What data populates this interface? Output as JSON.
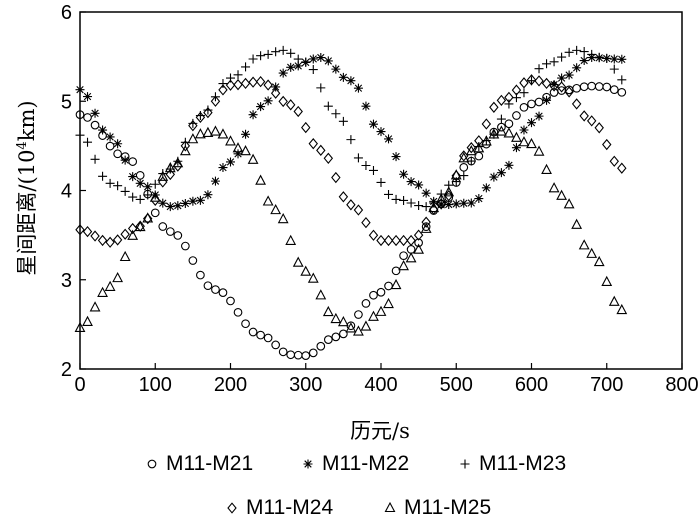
{
  "chart_data": {
    "type": "scatter",
    "title": "",
    "xlabel": "历元/s",
    "ylabel_main": "星间距离/(10",
    "ylabel_sup": "4",
    "ylabel_tail": "km)",
    "xlim": [
      0,
      800
    ],
    "ylim": [
      2,
      6
    ],
    "xticks": [
      0,
      100,
      200,
      300,
      400,
      500,
      600,
      700,
      800
    ],
    "yticks": [
      2,
      3,
      4,
      5,
      6
    ],
    "grid": false,
    "legend_position": "bottom",
    "series": [
      {
        "name": "M11-M21",
        "marker": "circle",
        "x": [
          0,
          60,
          120,
          180,
          240,
          280,
          300,
          340,
          400,
          440,
          480,
          520,
          560,
          600,
          640,
          680,
          700,
          720
        ],
        "y": [
          4.85,
          4.38,
          3.54,
          2.89,
          2.38,
          2.16,
          2.15,
          2.36,
          2.86,
          3.34,
          3.85,
          4.33,
          4.71,
          4.97,
          5.12,
          5.17,
          5.16,
          5.1
        ]
      },
      {
        "name": "M11-M22",
        "marker": "asterisk",
        "x": [
          0,
          40,
          80,
          120,
          160,
          200,
          240,
          280,
          320,
          360,
          400,
          440,
          480,
          520,
          560,
          600,
          640,
          680,
          720
        ],
        "y": [
          5.13,
          4.6,
          4.08,
          3.82,
          3.89,
          4.32,
          4.94,
          5.38,
          5.49,
          5.23,
          4.66,
          4.1,
          3.84,
          3.86,
          4.2,
          4.76,
          5.26,
          5.49,
          5.47
        ]
      },
      {
        "name": "M11-M23",
        "marker": "plus",
        "x": [
          0,
          40,
          80,
          120,
          160,
          200,
          240,
          270,
          300,
          340,
          380,
          420,
          460,
          500,
          540,
          580,
          620,
          660,
          700,
          720
        ],
        "y": [
          4.62,
          4.08,
          3.9,
          4.24,
          4.84,
          5.26,
          5.51,
          5.57,
          5.44,
          4.86,
          4.28,
          3.9,
          3.82,
          4.1,
          4.56,
          5.04,
          5.42,
          5.57,
          5.48,
          5.24
        ]
      },
      {
        "name": "M11-M24",
        "marker": "diamond",
        "x": [
          0,
          40,
          80,
          120,
          160,
          200,
          240,
          280,
          320,
          360,
          400,
          440,
          480,
          520,
          560,
          600,
          640,
          680,
          720
        ],
        "y": [
          3.56,
          3.42,
          3.6,
          4.18,
          4.82,
          5.18,
          5.22,
          4.96,
          4.45,
          3.84,
          3.44,
          3.44,
          3.85,
          4.48,
          5.01,
          5.24,
          5.16,
          4.78,
          4.25
        ]
      },
      {
        "name": "M11-M25",
        "marker": "triangle",
        "x": [
          0,
          40,
          80,
          120,
          160,
          180,
          220,
          260,
          300,
          340,
          370,
          400,
          440,
          480,
          520,
          560,
          600,
          640,
          680,
          720
        ],
        "y": [
          2.46,
          2.92,
          3.59,
          4.25,
          4.63,
          4.66,
          4.44,
          3.78,
          3.09,
          2.56,
          2.42,
          2.64,
          3.24,
          3.9,
          4.44,
          4.66,
          4.52,
          3.94,
          3.29,
          2.66
        ]
      }
    ]
  }
}
